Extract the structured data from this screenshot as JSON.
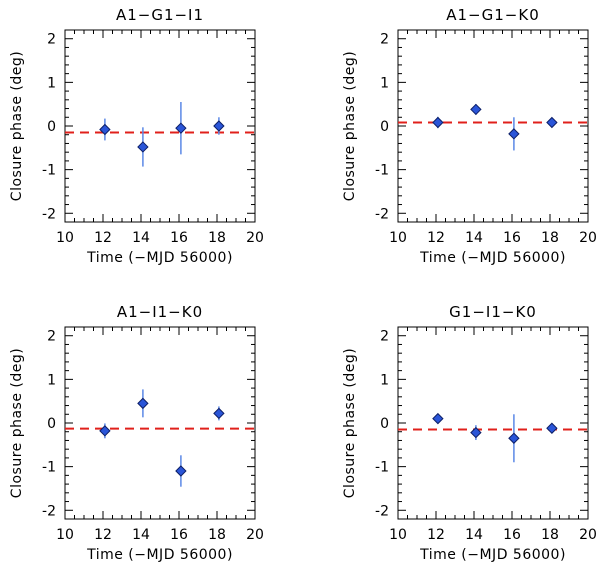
{
  "colors": {
    "reference_line": "#e0201b",
    "error_bar": "#5b88e6",
    "marker_fill": "#2a55d8",
    "marker_edge": "#0d1f66",
    "axes": "#000000"
  },
  "chart_data": [
    {
      "type": "scatter",
      "title": "A1−G1−I1",
      "xlabel": "Time (−MJD 56000)",
      "ylabel": "Closure phase (deg)",
      "xlim": [
        10,
        20
      ],
      "ylim": [
        -2.2,
        2.2
      ],
      "xticks": [
        10,
        12,
        14,
        16,
        18,
        20
      ],
      "yticks": [
        -2,
        -1,
        0,
        1,
        2
      ],
      "reference_y": -0.15,
      "points": [
        {
          "x": 12.1,
          "y": -0.08,
          "err": 0.25
        },
        {
          "x": 14.1,
          "y": -0.48,
          "err": 0.45
        },
        {
          "x": 16.1,
          "y": -0.05,
          "err": 0.6
        },
        {
          "x": 18.1,
          "y": 0.0,
          "err": 0.2
        }
      ]
    },
    {
      "type": "scatter",
      "title": "A1−G1−K0",
      "xlabel": "Time (−MJD 56000)",
      "ylabel": "Closure phase (deg)",
      "xlim": [
        10,
        20
      ],
      "ylim": [
        -2.2,
        2.2
      ],
      "xticks": [
        10,
        12,
        14,
        16,
        18,
        20
      ],
      "yticks": [
        -2,
        -1,
        0,
        1,
        2
      ],
      "reference_y": 0.08,
      "points": [
        {
          "x": 12.1,
          "y": 0.08,
          "err": 0.13
        },
        {
          "x": 14.1,
          "y": 0.38,
          "err": 0.12
        },
        {
          "x": 16.1,
          "y": -0.18,
          "err": 0.38
        },
        {
          "x": 18.1,
          "y": 0.08,
          "err": 0.06
        }
      ]
    },
    {
      "type": "scatter",
      "title": "A1−I1−K0",
      "xlabel": "Time (−MJD 56000)",
      "ylabel": "Closure phase (deg)",
      "xlim": [
        10,
        20
      ],
      "ylim": [
        -2.2,
        2.2
      ],
      "xticks": [
        10,
        12,
        14,
        16,
        18,
        20
      ],
      "yticks": [
        -2,
        -1,
        0,
        1,
        2
      ],
      "reference_y": -0.13,
      "points": [
        {
          "x": 12.1,
          "y": -0.18,
          "err": 0.17
        },
        {
          "x": 14.1,
          "y": 0.45,
          "err": 0.32
        },
        {
          "x": 16.1,
          "y": -1.1,
          "err": 0.36
        },
        {
          "x": 18.1,
          "y": 0.22,
          "err": 0.16
        }
      ]
    },
    {
      "type": "scatter",
      "title": "G1−I1−K0",
      "xlabel": "Time (−MJD 56000)",
      "ylabel": "Closure phase (deg)",
      "xlim": [
        10,
        20
      ],
      "ylim": [
        -2.2,
        2.2
      ],
      "xticks": [
        10,
        12,
        14,
        16,
        18,
        20
      ],
      "yticks": [
        -2,
        -1,
        0,
        1,
        2
      ],
      "reference_y": -0.15,
      "points": [
        {
          "x": 12.1,
          "y": 0.1,
          "err": 0.1
        },
        {
          "x": 14.1,
          "y": -0.22,
          "err": 0.17
        },
        {
          "x": 16.1,
          "y": -0.35,
          "err": 0.55
        },
        {
          "x": 18.1,
          "y": -0.12,
          "err": 0.07
        }
      ]
    }
  ]
}
